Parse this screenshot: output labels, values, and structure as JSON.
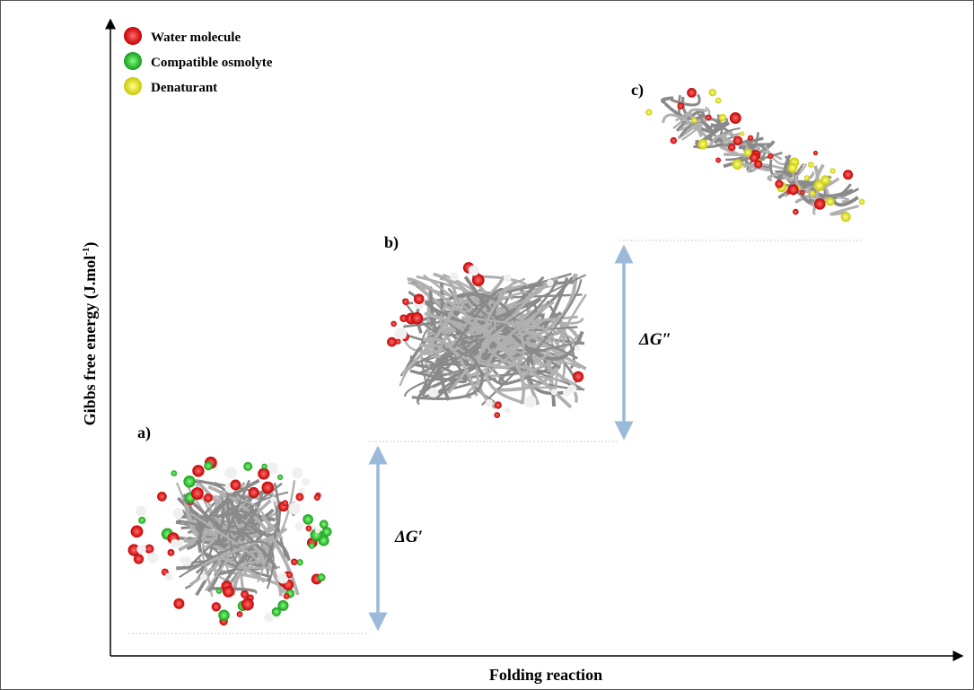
{
  "legend": [
    {
      "label": "Water molecule"
    },
    {
      "label": "Compatible osmolyte"
    },
    {
      "label": "Denaturant"
    }
  ],
  "states": [
    {
      "label": "a)"
    },
    {
      "label": "b)"
    },
    {
      "label": "c)"
    }
  ],
  "energy_gaps": [
    {
      "label": "ΔG′"
    },
    {
      "label": "ΔG″"
    }
  ],
  "y_axis_label": {
    "text": "Gibbs free energy (J.mol",
    "superscript": "-1",
    "close": ")"
  },
  "x_axis_label": "Folding reaction"
}
